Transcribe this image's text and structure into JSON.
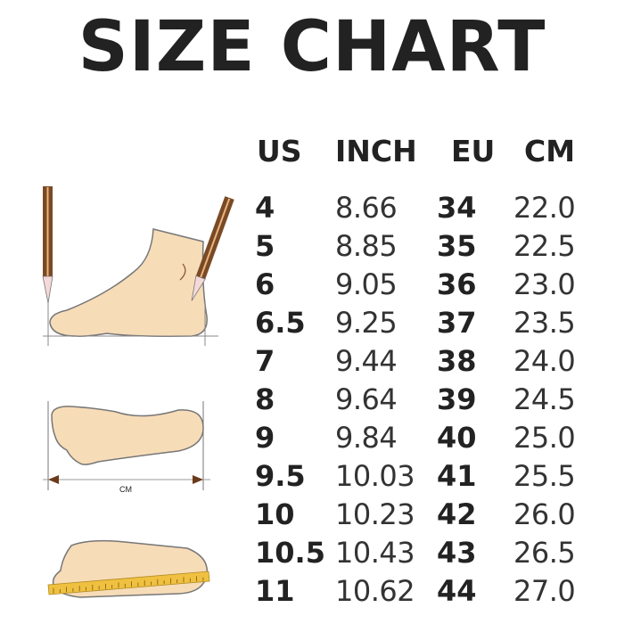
{
  "title": "SIZE CHART",
  "table": {
    "headers": [
      "US",
      "INCH",
      "EU",
      "CM"
    ],
    "rows": [
      [
        "4",
        "8.66",
        "34",
        "22.0"
      ],
      [
        "5",
        "8.85",
        "35",
        "22.5"
      ],
      [
        "6",
        "9.05",
        "36",
        "23.0"
      ],
      [
        "6.5",
        "9.25",
        "37",
        "23.5"
      ],
      [
        "7",
        "9.44",
        "38",
        "24.0"
      ],
      [
        "8",
        "9.64",
        "39",
        "24.5"
      ],
      [
        "9",
        "9.84",
        "40",
        "25.0"
      ],
      [
        "9.5",
        "10.03",
        "41",
        "25.5"
      ],
      [
        "10",
        "10.23",
        "42",
        "26.0"
      ],
      [
        "10.5",
        "10.43",
        "43",
        "26.5"
      ],
      [
        "11",
        "10.62",
        "44",
        "27.0"
      ]
    ]
  },
  "illustration": {
    "measure_label": "CM",
    "foot_color": "#f7dcb8",
    "pencil_color": "#7a4a25",
    "ruler_color": "#f0c040"
  }
}
